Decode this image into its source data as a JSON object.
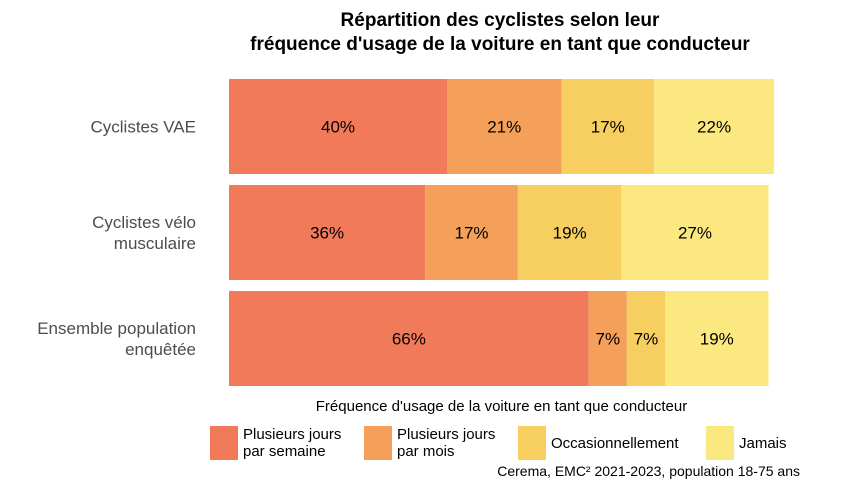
{
  "chart_data": {
    "type": "bar",
    "orientation": "horizontal",
    "stacked": true,
    "title": [
      "Répartition des cyclistes selon leur",
      "fréquence d'usage de la voiture en tant que conducteur"
    ],
    "categories": [
      "Cyclistes VAE",
      "Cyclistes vélo\nmusculaire",
      "Ensemble population\nenquêtée"
    ],
    "xlim": [
      0,
      100
    ],
    "grid": false,
    "legend_position": "bottom",
    "legend_title": "Fréquence d'usage de la voiture en tant que conducteur",
    "series": [
      {
        "name": "Plusieurs jours\npar semaine",
        "color": "#f07a5a",
        "values": [
          40,
          36,
          66
        ],
        "labels": [
          "40%",
          "36%",
          "66%"
        ]
      },
      {
        "name": "Plusieurs jours\npar mois",
        "color": "#f4a05a",
        "values": [
          21,
          17,
          7
        ],
        "labels": [
          "21%",
          "17%",
          "7%"
        ]
      },
      {
        "name": "Occasionnellement",
        "color": "#f7cf60",
        "values": [
          17,
          19,
          7
        ],
        "labels": [
          "17%",
          "19%",
          "7%"
        ]
      },
      {
        "name": "Jamais",
        "color": "#fbe880",
        "values": [
          22,
          27,
          19
        ],
        "labels": [
          "22%",
          "27%",
          "19%"
        ]
      }
    ],
    "caption": "Cerema, EMC² 2021-2023, population 18-75 ans"
  }
}
